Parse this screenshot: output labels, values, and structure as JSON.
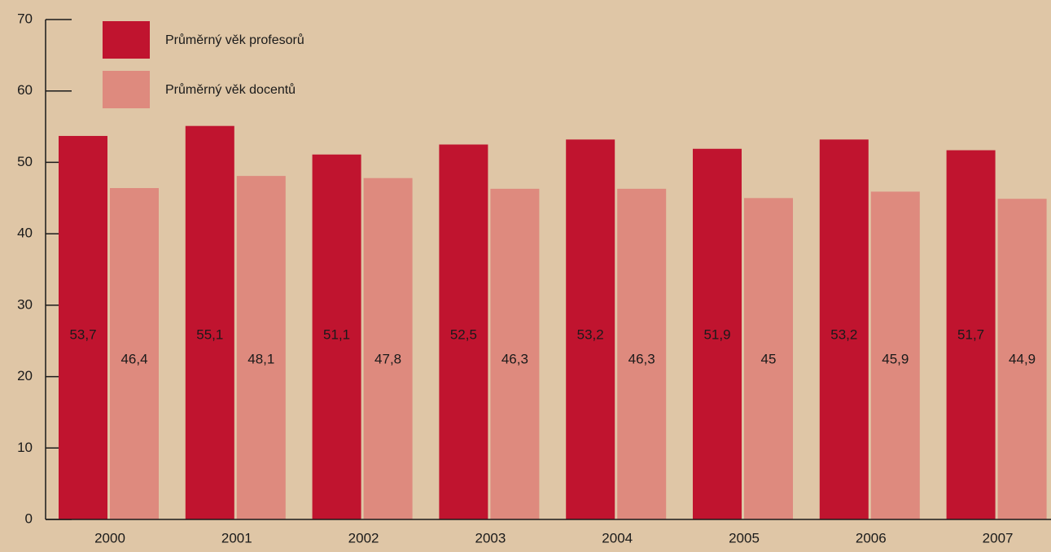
{
  "chart_data": {
    "type": "bar",
    "categories": [
      "2000",
      "2001",
      "2002",
      "2003",
      "2004",
      "2005",
      "2006",
      "2007"
    ],
    "series": [
      {
        "name": "Průměrný věk profesorů",
        "color": "#c0142f",
        "values": [
          53.7,
          55.1,
          51.1,
          52.5,
          53.2,
          51.9,
          53.2,
          51.7
        ],
        "value_labels": [
          "53,7",
          "55,1",
          "51,1",
          "52,5",
          "53,2",
          "51,9",
          "53,2",
          "51,7"
        ]
      },
      {
        "name": "Průměrný věk docentů",
        "color": "#de8a7e",
        "values": [
          46.4,
          48.1,
          47.8,
          46.3,
          46.3,
          45,
          45.9,
          44.9
        ],
        "value_labels": [
          "46,4",
          "48,1",
          "47,8",
          "46,3",
          "46,3",
          "45",
          "45,9",
          "44,9"
        ]
      }
    ],
    "ylim": [
      0,
      70
    ],
    "yticks": [
      0,
      10,
      20,
      30,
      40,
      50,
      60,
      70
    ],
    "legend": "top-left"
  }
}
